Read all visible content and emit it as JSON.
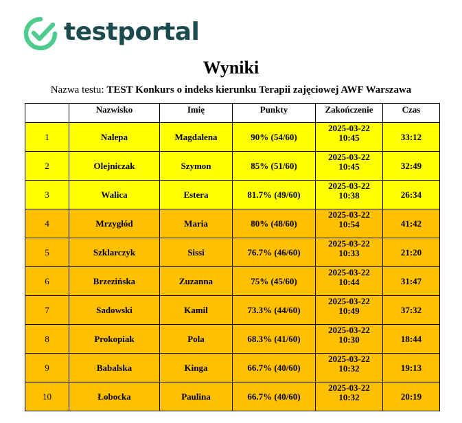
{
  "logo": {
    "text": "testportal",
    "colors": {
      "mark": "#4ecb8d",
      "text": "#1b4a4f"
    }
  },
  "title": "Wyniki",
  "test_name": {
    "label": "Nazwa testu:",
    "value": "TEST Konkurs o indeks kierunku Terapii zajęciowej AWF Warszawa"
  },
  "table": {
    "headers": {
      "rank": "",
      "surname": "Nazwisko",
      "first_name": "Imię",
      "points": "Punkty",
      "finished": "Zakończenie",
      "time": "Czas"
    },
    "row_colors": {
      "top3": "#ffff00",
      "rest": "#ffc000"
    },
    "rows": [
      {
        "rank": "1",
        "surname": "Nalepa",
        "first_name": "Magdalena",
        "points": "90% (54/60)",
        "date": "2025-03-22",
        "hour": "10:45",
        "time": "33:12",
        "highlight": "top3"
      },
      {
        "rank": "2",
        "surname": "Olejniczak",
        "first_name": "Szymon",
        "points": "85% (51/60)",
        "date": "2025-03-22",
        "hour": "10:45",
        "time": "32:49",
        "highlight": "top3"
      },
      {
        "rank": "3",
        "surname": "Walica",
        "first_name": "Estera",
        "points": "81.7% (49/60)",
        "date": "2025-03-22",
        "hour": "10:38",
        "time": "26:34",
        "highlight": "top3"
      },
      {
        "rank": "4",
        "surname": "Mrzygłód",
        "first_name": "Maria",
        "points": "80% (48/60)",
        "date": "2025-03-22",
        "hour": "10:54",
        "time": "41:42",
        "highlight": "rest"
      },
      {
        "rank": "5",
        "surname": "Szklarczyk",
        "first_name": "Sissi",
        "points": "76.7% (46/60)",
        "date": "2025-03-22",
        "hour": "10:33",
        "time": "21:20",
        "highlight": "rest"
      },
      {
        "rank": "6",
        "surname": "Brzezińska",
        "first_name": "Zuzanna",
        "points": "75% (45/60)",
        "date": "2025-03-22",
        "hour": "10:44",
        "time": "31:47",
        "highlight": "rest"
      },
      {
        "rank": "7",
        "surname": "Sadowski",
        "first_name": "Kamil",
        "points": "73.3% (44/60)",
        "date": "2025-03-22",
        "hour": "10:49",
        "time": "37:32",
        "highlight": "rest"
      },
      {
        "rank": "8",
        "surname": "Prokopiak",
        "first_name": "Pola",
        "points": "68.3% (41/60)",
        "date": "2025-03-22",
        "hour": "10:30",
        "time": "18:44",
        "highlight": "rest"
      },
      {
        "rank": "9",
        "surname": "Babalska",
        "first_name": "Kinga",
        "points": "66.7% (40/60)",
        "date": "2025-03-22",
        "hour": "10:32",
        "time": "19:13",
        "highlight": "rest"
      },
      {
        "rank": "10",
        "surname": "Łobocka",
        "first_name": "Paulina",
        "points": "66.7% (40/60)",
        "date": "2025-03-22",
        "hour": "10:32",
        "time": "20:19",
        "highlight": "rest"
      }
    ]
  }
}
